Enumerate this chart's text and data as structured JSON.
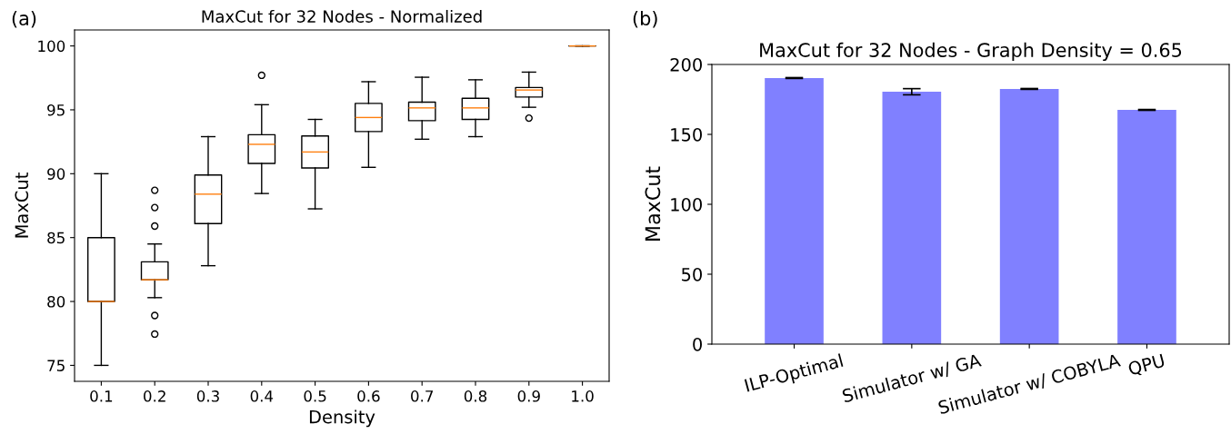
{
  "chart_data": [
    {
      "type": "box",
      "title": "MaxCut for 32 Nodes - Normalized",
      "xlabel": "Density",
      "ylabel": "MaxCut",
      "annotations": [
        "(a)"
      ],
      "categories": [
        "0.1",
        "0.2",
        "0.3",
        "0.4",
        "0.5",
        "0.6",
        "0.7",
        "0.8",
        "0.9",
        "1.0"
      ],
      "boxes": [
        {
          "low": 75,
          "q1": 80,
          "median": 80,
          "q3": 85,
          "high": 90
        },
        {
          "low": 80.3,
          "q1": 81.7,
          "median": 81.7,
          "q3": 83.1,
          "high": 84.5,
          "outliers": [
            88.7,
            87.35,
            85.9,
            78.9,
            77.45
          ]
        },
        {
          "low": 82.8,
          "q1": 86.1,
          "median": 88.4,
          "q3": 89.9,
          "high": 92.9
        },
        {
          "low": 88.45,
          "q1": 90.8,
          "median": 92.3,
          "q3": 93.05,
          "high": 95.4,
          "outliers": [
            97.7
          ]
        },
        {
          "low": 87.25,
          "q1": 90.45,
          "median": 91.7,
          "q3": 92.95,
          "high": 94.25
        },
        {
          "low": 90.5,
          "q1": 93.3,
          "median": 94.4,
          "q3": 95.5,
          "high": 97.2
        },
        {
          "low": 92.7,
          "q1": 94.15,
          "median": 95.15,
          "q3": 95.6,
          "high": 97.55
        },
        {
          "low": 92.9,
          "q1": 94.25,
          "median": 95.15,
          "q3": 95.9,
          "high": 97.35
        },
        {
          "low": 95.2,
          "q1": 96.0,
          "median": 96.55,
          "q3": 96.75,
          "high": 97.95,
          "outliers": [
            94.35
          ]
        },
        {
          "low": 100,
          "q1": 100,
          "median": 100,
          "q3": 100,
          "high": 100
        }
      ],
      "color": "#000000",
      "ylim": [
        73.75,
        101.25
      ],
      "yticks": [
        75,
        80,
        85,
        90,
        95,
        100
      ]
    },
    {
      "type": "bar",
      "title": "MaxCut for 32 Nodes - Graph Density = 0.65",
      "ylabel": "MaxCut",
      "annotations": [
        "(b)"
      ],
      "categories": [
        "ILP-Optimal",
        "Simulator w/ GA",
        "Simulator w/ COBYLA",
        "QPU"
      ],
      "values": [
        190.3,
        180.5,
        182.5,
        167.5
      ],
      "errors": [
        0.3,
        2.2,
        0.3,
        0.3
      ],
      "color": "#8080ff",
      "ylim": [
        0,
        200
      ],
      "yticks": [
        0,
        50,
        100,
        150,
        200
      ]
    }
  ]
}
